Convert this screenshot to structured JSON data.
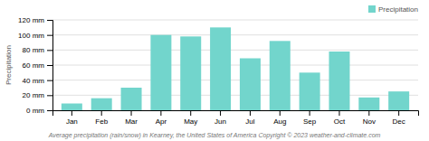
{
  "chart_data": {
    "type": "bar",
    "categories": [
      "Jan",
      "Feb",
      "Mar",
      "Apr",
      "May",
      "Jun",
      "Jul",
      "Aug",
      "Sep",
      "Oct",
      "Nov",
      "Dec"
    ],
    "series": [
      {
        "name": "Precipitation",
        "color": "#72d5cc",
        "values": [
          9,
          16,
          30,
          100,
          98,
          110,
          69,
          92,
          50,
          78,
          17,
          25
        ]
      }
    ],
    "ylabel": "Precipitation",
    "caption": "Average precipitation (rain/snow) in Kearney, the United States of America   Copyright © 2023  weather-and-climate.com",
    "ylim": [
      0,
      120
    ],
    "yticks": [
      {
        "value": 0,
        "label": "0 mm"
      },
      {
        "value": 20,
        "label": "20 mm"
      },
      {
        "value": 40,
        "label": "40 mm"
      },
      {
        "value": 60,
        "label": "60 mm"
      },
      {
        "value": 80,
        "label": "80 mm"
      },
      {
        "value": 100,
        "label": "100 mm"
      },
      {
        "value": 120,
        "label": "120 mm"
      }
    ],
    "grid": true,
    "legend": "upper right"
  }
}
